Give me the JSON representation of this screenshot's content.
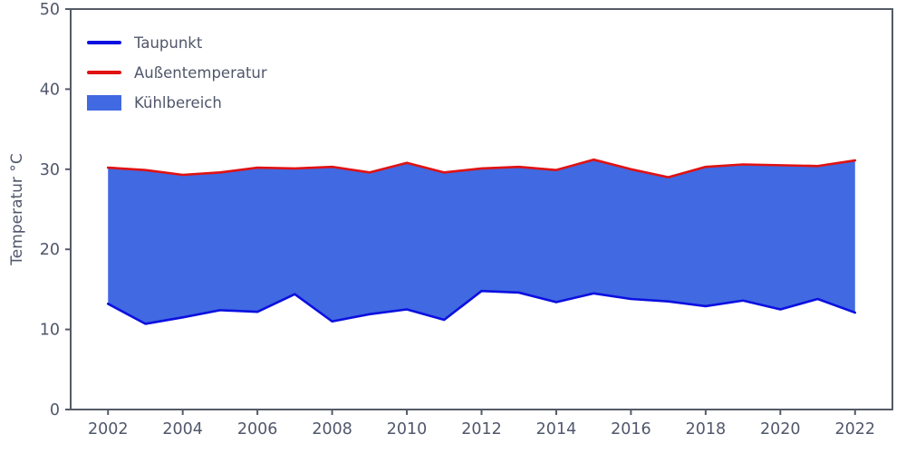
{
  "chart_data": {
    "type": "area",
    "title": "",
    "xlabel": "",
    "ylabel": "Temperatur °C",
    "xlim": [
      2001,
      2023
    ],
    "ylim": [
      0,
      50
    ],
    "xticks": [
      2002,
      2004,
      2006,
      2008,
      2010,
      2012,
      2014,
      2016,
      2018,
      2020,
      2022
    ],
    "yticks": [
      0,
      10,
      20,
      30,
      40,
      50
    ],
    "grid": false,
    "legend_position": "upper left",
    "axis_color": "#555b66",
    "text_color": "#50576b",
    "x": [
      2002,
      2003,
      2004,
      2005,
      2006,
      2007,
      2008,
      2009,
      2010,
      2011,
      2012,
      2013,
      2014,
      2015,
      2016,
      2017,
      2018,
      2019,
      2020,
      2021,
      2022
    ],
    "series": [
      {
        "name": "Taupunkt",
        "color": "#0b10e0",
        "values": [
          13.2,
          10.7,
          11.5,
          12.4,
          12.2,
          14.4,
          11.0,
          11.9,
          12.5,
          11.2,
          14.8,
          14.6,
          13.4,
          14.5,
          13.8,
          13.5,
          12.9,
          13.6,
          12.5,
          13.8,
          12.1
        ]
      },
      {
        "name": "Außentemperatur",
        "color": "#e01212",
        "values": [
          30.2,
          29.9,
          29.3,
          29.6,
          30.2,
          30.1,
          30.3,
          29.6,
          30.8,
          29.6,
          30.1,
          30.3,
          29.9,
          31.2,
          30.0,
          29.0,
          30.3,
          30.6,
          30.5,
          30.4,
          31.1
        ]
      }
    ],
    "fill": {
      "name": "Kühlbereich",
      "color": "#4169e1",
      "between": [
        "Taupunkt",
        "Außentemperatur"
      ]
    }
  }
}
